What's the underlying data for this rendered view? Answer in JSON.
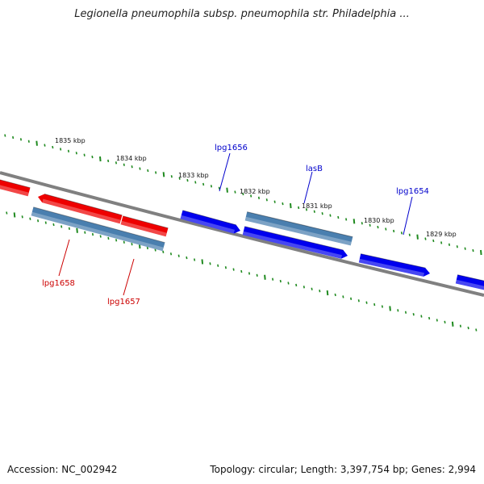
{
  "title": "Legionella pneumophila subsp. pneumophila str. Philadelphia ...",
  "footer": {
    "accession": "Accession: NC_002942",
    "topology": "Topology: circular; Length: 3,397,754 bp; Genes: 2,994"
  },
  "colors": {
    "backbone": "#808080",
    "tick": "#1f8a1f",
    "forward_gene": "#0000ee",
    "reverse_gene": "#ee0000",
    "other_gene": "#4a7faf",
    "forward_label": "#0000cc",
    "reverse_label": "#cc0000"
  },
  "tick_labels": [
    {
      "id": "1835",
      "text": "1835 kbp"
    },
    {
      "id": "1834",
      "text": "1834 kbp"
    },
    {
      "id": "1833",
      "text": "1833 kbp"
    },
    {
      "id": "1832",
      "text": "1832 kbp"
    },
    {
      "id": "1831",
      "text": "1831 kbp"
    },
    {
      "id": "1830",
      "text": "1830 kbp"
    },
    {
      "id": "1829",
      "text": "1829 kbp"
    }
  ],
  "gene_labels": [
    {
      "id": "lpg1656",
      "text": "lpg1656",
      "strand": "forward"
    },
    {
      "id": "lasB",
      "text": "lasB",
      "strand": "forward"
    },
    {
      "id": "lpg1654",
      "text": "lpg1654",
      "strand": "forward"
    },
    {
      "id": "lpg1658",
      "text": "lpg1658",
      "strand": "reverse"
    },
    {
      "id": "lpg1657",
      "text": "lpg1657",
      "strand": "reverse"
    }
  ]
}
